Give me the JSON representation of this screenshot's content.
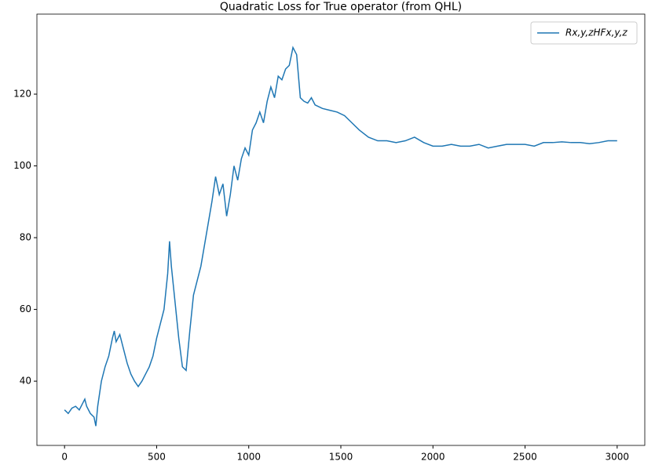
{
  "chart_data": {
    "type": "line",
    "title": "Quadratic Loss for True operator (from QHL)",
    "x": [
      0,
      20,
      40,
      60,
      80,
      100,
      110,
      120,
      140,
      160,
      170,
      180,
      200,
      220,
      240,
      260,
      270,
      280,
      300,
      320,
      340,
      360,
      380,
      400,
      420,
      440,
      460,
      480,
      500,
      520,
      540,
      560,
      570,
      580,
      600,
      620,
      640,
      660,
      680,
      700,
      720,
      740,
      760,
      780,
      800,
      820,
      840,
      860,
      880,
      900,
      920,
      940,
      960,
      980,
      1000,
      1020,
      1040,
      1060,
      1080,
      1100,
      1120,
      1140,
      1160,
      1180,
      1200,
      1220,
      1240,
      1260,
      1280,
      1300,
      1320,
      1340,
      1360,
      1400,
      1440,
      1480,
      1520,
      1560,
      1600,
      1650,
      1700,
      1750,
      1800,
      1850,
      1900,
      1950,
      2000,
      2050,
      2100,
      2150,
      2200,
      2250,
      2300,
      2350,
      2400,
      2450,
      2500,
      2550,
      2600,
      2650,
      2700,
      2750,
      2800,
      2850,
      2900,
      2950,
      3000
    ],
    "series": [
      {
        "name": "Rx,y,zHFx,y,z",
        "color": "#1f77b4",
        "values": [
          32,
          31,
          32.5,
          33,
          32,
          34,
          35,
          33,
          31,
          30,
          27.5,
          33,
          40,
          44,
          47,
          52,
          54,
          51,
          53,
          49,
          45,
          42,
          40,
          38.5,
          40,
          42,
          44,
          47,
          52,
          56,
          60,
          70,
          79,
          72,
          62,
          52,
          44,
          43,
          54,
          64,
          68,
          72,
          78,
          84,
          90,
          97,
          92,
          95,
          86,
          92,
          100,
          96,
          102,
          105,
          103,
          110,
          112,
          115,
          112,
          118,
          122,
          119,
          125,
          124,
          127,
          128,
          133,
          131,
          119,
          118,
          117.5,
          119,
          117,
          116,
          115.5,
          115,
          114,
          112,
          110,
          108,
          107,
          107,
          106.5,
          107,
          108,
          106.5,
          105.5,
          105.5,
          106,
          105.5,
          105.5,
          106,
          105,
          105.5,
          106,
          106,
          106,
          105.5,
          106.5,
          106.5,
          106.7,
          106.5,
          106.5,
          106.2,
          106.5,
          107,
          107
        ]
      }
    ],
    "xlim": [
      -150,
      3150
    ],
    "ylim": [
      22.1,
      142.3
    ],
    "xticks": [
      0,
      500,
      1000,
      1500,
      2000,
      2500,
      3000
    ],
    "yticks": [
      40,
      60,
      80,
      100,
      120
    ],
    "legend": "upper right"
  }
}
